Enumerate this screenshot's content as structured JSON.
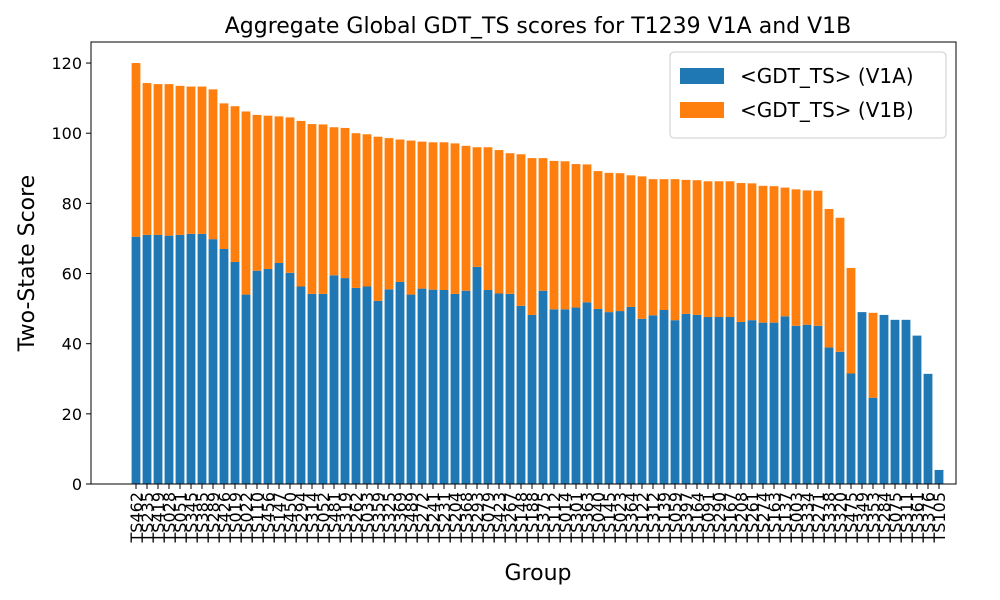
{
  "chart_data": {
    "type": "stacked_bar",
    "title": "Aggregate Global GDT_TS scores for T1239 V1A and V1B",
    "x_label": "Group",
    "y_label": "Two-State Score",
    "categories": [
      "TS462",
      "TS235",
      "TS419",
      "TS028",
      "TS051",
      "TS345",
      "TS385",
      "TS289",
      "TS426",
      "TS019",
      "TS022",
      "TS110",
      "TS456",
      "TS147",
      "TS450",
      "TS294",
      "TS314",
      "TS052",
      "TS481",
      "TS319",
      "TS262",
      "TS033",
      "TS359",
      "TS325",
      "TS369",
      "TS489",
      "TS272",
      "TS241",
      "TS231",
      "TS204",
      "TS368",
      "TS293",
      "TS079",
      "TS423",
      "TS267",
      "TS148",
      "TS188",
      "TS375",
      "TS112",
      "TS014",
      "TS301",
      "TS363",
      "TS040",
      "TS145",
      "TS023",
      "TS364",
      "TS122",
      "TS312",
      "TS139",
      "TS059",
      "TS397",
      "TS164",
      "TS091",
      "TS290",
      "TS167",
      "TS208",
      "TS261",
      "TS274",
      "TS163",
      "TS137",
      "TS003",
      "TS334",
      "TS271",
      "TS338",
      "TS320",
      "TS475",
      "TS349",
      "TS353",
      "TS284",
      "TS075",
      "TS311",
      "TS361",
      "TS376",
      "TS105"
    ],
    "series": [
      {
        "name": "<GDT_TS> (V1A)",
        "color": "#1f77b4",
        "values": [
          70.5,
          71,
          71,
          70.8,
          71,
          71.3,
          71.3,
          69.8,
          67,
          63.3,
          54,
          60.8,
          61.3,
          63,
          60.2,
          56.3,
          54.2,
          54.2,
          59.5,
          58.7,
          55.9,
          56.3,
          52.2,
          55.5,
          57.6,
          54,
          55.7,
          55.4,
          55.3,
          54.2,
          55.1,
          61.9,
          55.3,
          54.3,
          54.2,
          50.8,
          48.2,
          55.1,
          49.8,
          49.8,
          50.3,
          51.8,
          49.9,
          49,
          49.3,
          50.5,
          47.1,
          48.1,
          49.6,
          46.7,
          48.5,
          48.2,
          47.6,
          47.6,
          47.6,
          46.2,
          46.7,
          46,
          46,
          47.8,
          45.1,
          45.4,
          45.1,
          38.9,
          37.7,
          31.5,
          49,
          24.6,
          48.2,
          46.8,
          46.8,
          42.3,
          31.4,
          4
        ]
      },
      {
        "name": "<GDT_TS> (V1B)",
        "color": "#ff7f0e",
        "values": [
          49.5,
          43.3,
          43,
          43.2,
          42.5,
          42,
          42,
          42.7,
          41.5,
          44.4,
          52.2,
          44.4,
          43.7,
          41.8,
          44.3,
          47.2,
          48.4,
          48.3,
          42.2,
          42.8,
          44.1,
          43.4,
          46.8,
          43.1,
          40.6,
          43.9,
          41.9,
          42,
          42.1,
          42.9,
          41.3,
          34.1,
          40.7,
          40.9,
          40.1,
          43.2,
          44.7,
          37.8,
          42.3,
          42.2,
          40.9,
          39.3,
          39.3,
          39.7,
          39.3,
          37.5,
          40.6,
          38.8,
          37.3,
          40.2,
          38.2,
          38.4,
          38.7,
          38.7,
          38.7,
          39.6,
          39,
          39,
          38.9,
          36.7,
          38.9,
          38.3,
          38.5,
          39.5,
          38.2,
          30.1,
          0,
          24.2,
          0,
          0,
          0,
          0,
          0,
          0
        ]
      }
    ],
    "ylim": [
      0,
      126
    ],
    "yticks": [
      0,
      20,
      40,
      60,
      80,
      100,
      120
    ],
    "legend": "upper right"
  }
}
